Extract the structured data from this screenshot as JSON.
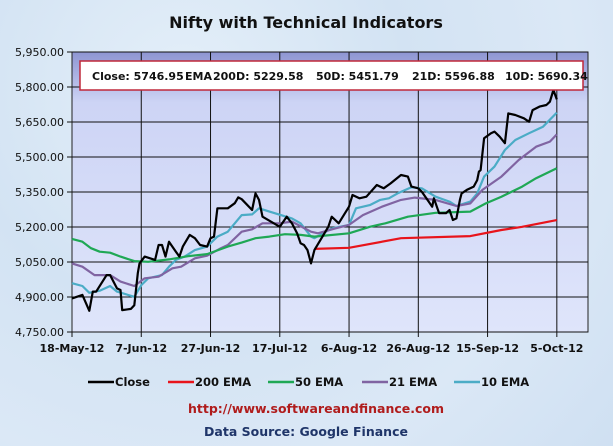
{
  "chart_data": {
    "type": "line",
    "title": "Nifty with Technical Indicators",
    "xlabel": "",
    "ylabel": "",
    "x_unit": "days since 18-May-12",
    "xlim": [
      0,
      149
    ],
    "ylim": [
      4750,
      5950
    ],
    "y_ticks": [
      "4,750.00",
      "4,900.00",
      "5,050.00",
      "5,200.00",
      "5,350.00",
      "5,500.00",
      "5,650.00",
      "5,800.00",
      "5,950.00"
    ],
    "y_tick_values": [
      4750,
      4900,
      5050,
      5200,
      5350,
      5500,
      5650,
      5800,
      5950
    ],
    "x_ticks": [
      "18-May-12",
      "7-Jun-12",
      "27-Jun-12",
      "17-Jul-12",
      "6-Aug-12",
      "26-Aug-12",
      "15-Sep-12",
      "5-Oct-12"
    ],
    "x_tick_values": [
      0,
      20,
      40,
      60,
      80,
      100,
      120,
      140
    ],
    "grid": true,
    "legend_position": "bottom",
    "info_box": {
      "close": "Close: 5746.95",
      "ema_label": "EMA",
      "d200": "200D: 5229.58",
      "d50": "50D: 5451.79",
      "d21": "21D: 5596.88",
      "d10": "10D: 5690.34"
    },
    "series": [
      {
        "name": "Close",
        "color": "#000000",
        "points": [
          [
            0,
            4894
          ],
          [
            3,
            4909
          ],
          [
            5,
            4841
          ],
          [
            6,
            4923
          ],
          [
            7,
            4923
          ],
          [
            10,
            4994
          ],
          [
            11,
            4994
          ],
          [
            13,
            4937
          ],
          [
            14,
            4930
          ],
          [
            14.5,
            4844
          ],
          [
            17,
            4849
          ],
          [
            18,
            4865
          ],
          [
            19,
            5002
          ],
          [
            19.5,
            5044
          ],
          [
            21,
            5073
          ],
          [
            24,
            5059
          ],
          [
            25,
            5123
          ],
          [
            26,
            5123
          ],
          [
            27,
            5073
          ],
          [
            28,
            5137
          ],
          [
            30,
            5094
          ],
          [
            31,
            5073
          ],
          [
            32,
            5116
          ],
          [
            34,
            5166
          ],
          [
            35.5,
            5152
          ],
          [
            37,
            5123
          ],
          [
            39,
            5116
          ],
          [
            40,
            5152
          ],
          [
            41,
            5159
          ],
          [
            42,
            5280
          ],
          [
            45,
            5280
          ],
          [
            47,
            5302
          ],
          [
            48,
            5327
          ],
          [
            49,
            5319
          ],
          [
            52,
            5273
          ],
          [
            53,
            5344
          ],
          [
            54,
            5316
          ],
          [
            55,
            5244
          ],
          [
            60,
            5201
          ],
          [
            62,
            5244
          ],
          [
            63.5,
            5216
          ],
          [
            65,
            5173
          ],
          [
            66,
            5130
          ],
          [
            67,
            5123
          ],
          [
            68,
            5101
          ],
          [
            69,
            5044
          ],
          [
            70,
            5101
          ],
          [
            74,
            5201
          ],
          [
            75,
            5244
          ],
          [
            77,
            5216
          ],
          [
            80,
            5287
          ],
          [
            81,
            5337
          ],
          [
            83,
            5323
          ],
          [
            85,
            5330
          ],
          [
            88,
            5380
          ],
          [
            90,
            5366
          ],
          [
            92,
            5387
          ],
          [
            95,
            5423
          ],
          [
            97,
            5416
          ],
          [
            98,
            5373
          ],
          [
            100,
            5366
          ],
          [
            101,
            5351
          ],
          [
            103,
            5309
          ],
          [
            104,
            5287
          ],
          [
            104.5,
            5323
          ],
          [
            106,
            5259
          ],
          [
            108,
            5259
          ],
          [
            109,
            5273
          ],
          [
            110,
            5230
          ],
          [
            111,
            5237
          ],
          [
            112,
            5316
          ],
          [
            112.5,
            5344
          ],
          [
            114,
            5359
          ],
          [
            116,
            5373
          ],
          [
            117,
            5401
          ],
          [
            117.5,
            5437
          ],
          [
            118,
            5444
          ],
          [
            119,
            5580
          ],
          [
            121,
            5602
          ],
          [
            122,
            5609
          ],
          [
            123.5,
            5587
          ],
          [
            125,
            5559
          ],
          [
            126,
            5687
          ],
          [
            128,
            5680
          ],
          [
            130.5,
            5666
          ],
          [
            132,
            5651
          ],
          [
            133,
            5701
          ],
          [
            135,
            5716
          ],
          [
            137,
            5723
          ],
          [
            138,
            5737
          ],
          [
            139,
            5787
          ],
          [
            140,
            5746.95
          ]
        ]
      },
      {
        "name": "200 EMA",
        "color": "#e8141b",
        "points": [
          [
            70,
            5106
          ],
          [
            80,
            5111
          ],
          [
            95,
            5152
          ],
          [
            115,
            5161
          ],
          [
            124,
            5187
          ],
          [
            130,
            5201
          ],
          [
            140,
            5229.58
          ]
        ]
      },
      {
        "name": "50 EMA",
        "color": "#1fa855",
        "points": [
          [
            0,
            5149
          ],
          [
            3,
            5137
          ],
          [
            5.5,
            5109
          ],
          [
            8,
            5094
          ],
          [
            11,
            5090
          ],
          [
            14,
            5073
          ],
          [
            18,
            5054
          ],
          [
            22,
            5051
          ],
          [
            28,
            5061
          ],
          [
            33.5,
            5075
          ],
          [
            39,
            5084
          ],
          [
            45,
            5116
          ],
          [
            49,
            5133
          ],
          [
            53,
            5152
          ],
          [
            57,
            5159
          ],
          [
            61.5,
            5169
          ],
          [
            66,
            5166
          ],
          [
            70,
            5159
          ],
          [
            80,
            5173
          ],
          [
            86,
            5201
          ],
          [
            90.5,
            5216
          ],
          [
            97,
            5244
          ],
          [
            105,
            5261
          ],
          [
            115,
            5266
          ],
          [
            119.5,
            5301
          ],
          [
            124,
            5330
          ],
          [
            130,
            5373
          ],
          [
            134,
            5409
          ],
          [
            140,
            5451.79
          ]
        ]
      },
      {
        "name": "21 EMA",
        "color": "#8064a2",
        "points": [
          [
            0,
            5044
          ],
          [
            3,
            5030
          ],
          [
            6.5,
            4994
          ],
          [
            11,
            4994
          ],
          [
            14,
            4966
          ],
          [
            18,
            4947
          ],
          [
            21,
            4980
          ],
          [
            25,
            4987
          ],
          [
            29,
            5023
          ],
          [
            31.5,
            5030
          ],
          [
            35.5,
            5066
          ],
          [
            39,
            5077
          ],
          [
            43,
            5109
          ],
          [
            45,
            5123
          ],
          [
            49,
            5180
          ],
          [
            52,
            5190
          ],
          [
            55,
            5216
          ],
          [
            60,
            5216
          ],
          [
            63.5,
            5223
          ],
          [
            69,
            5180
          ],
          [
            71,
            5173
          ],
          [
            76,
            5194
          ],
          [
            80,
            5209
          ],
          [
            84,
            5251
          ],
          [
            89.5,
            5287
          ],
          [
            95,
            5316
          ],
          [
            99,
            5326
          ],
          [
            105,
            5316
          ],
          [
            111,
            5290
          ],
          [
            115,
            5301
          ],
          [
            118.5,
            5359
          ],
          [
            124,
            5416
          ],
          [
            129,
            5487
          ],
          [
            134,
            5544
          ],
          [
            138,
            5566
          ],
          [
            140,
            5596.88
          ]
        ]
      },
      {
        "name": "10 EMA",
        "color": "#4bacc6",
        "points": [
          [
            0,
            4959
          ],
          [
            3,
            4947
          ],
          [
            5,
            4918
          ],
          [
            8,
            4927
          ],
          [
            11,
            4947
          ],
          [
            13,
            4923
          ],
          [
            18,
            4901
          ],
          [
            20,
            4951
          ],
          [
            22,
            4980
          ],
          [
            26,
            4994
          ],
          [
            28,
            5030
          ],
          [
            30,
            5059
          ],
          [
            32.5,
            5073
          ],
          [
            35.5,
            5101
          ],
          [
            39,
            5116
          ],
          [
            42,
            5159
          ],
          [
            45,
            5180
          ],
          [
            49,
            5251
          ],
          [
            52,
            5254
          ],
          [
            54,
            5280
          ],
          [
            57,
            5266
          ],
          [
            63.5,
            5237
          ],
          [
            66,
            5216
          ],
          [
            69,
            5159
          ],
          [
            70,
            5152
          ],
          [
            75,
            5194
          ],
          [
            80,
            5209
          ],
          [
            82,
            5280
          ],
          [
            86,
            5294
          ],
          [
            89,
            5316
          ],
          [
            91.5,
            5323
          ],
          [
            94,
            5344
          ],
          [
            98,
            5370
          ],
          [
            101,
            5366
          ],
          [
            105,
            5330
          ],
          [
            109,
            5309
          ],
          [
            111,
            5290
          ],
          [
            115,
            5309
          ],
          [
            117,
            5344
          ],
          [
            119,
            5416
          ],
          [
            122,
            5459
          ],
          [
            125,
            5530
          ],
          [
            128,
            5573
          ],
          [
            132,
            5602
          ],
          [
            136,
            5630
          ],
          [
            140,
            5690.34
          ]
        ]
      }
    ]
  },
  "footer": {
    "url": "http://www.softwareandfinance.com",
    "source": "Data Source: Google Finance"
  }
}
